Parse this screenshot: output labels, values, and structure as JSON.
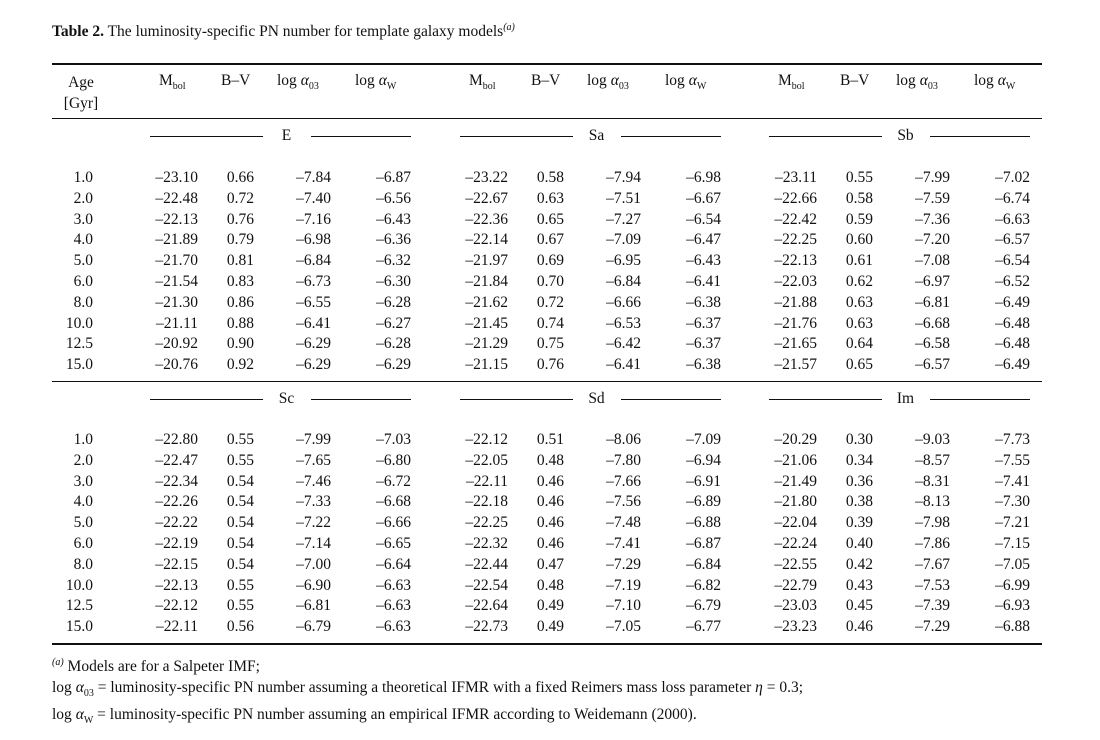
{
  "caption": {
    "label": "Table 2.",
    "text": "The luminosity-specific PN number for template galaxy models",
    "mark": "(a)"
  },
  "header": {
    "age": "Age",
    "age_unit": "[Gyr]",
    "mbol_main": "M",
    "mbol_sub": "bol",
    "bv": "B–V",
    "a03_log": "log ",
    "a03_sym": "α",
    "a03_sub": "03",
    "aw_log": "log ",
    "aw_sym": "α",
    "aw_sub": "W"
  },
  "ages": [
    "1.0",
    "2.0",
    "3.0",
    "4.0",
    "5.0",
    "6.0",
    "8.0",
    "10.0",
    "12.5",
    "15.0"
  ],
  "blocks": [
    {
      "groups": [
        {
          "name": "E",
          "rows": [
            [
              "–23.10",
              "0.66",
              "–7.84",
              "–6.87"
            ],
            [
              "–22.48",
              "0.72",
              "–7.40",
              "–6.56"
            ],
            [
              "–22.13",
              "0.76",
              "–7.16",
              "–6.43"
            ],
            [
              "–21.89",
              "0.79",
              "–6.98",
              "–6.36"
            ],
            [
              "–21.70",
              "0.81",
              "–6.84",
              "–6.32"
            ],
            [
              "–21.54",
              "0.83",
              "–6.73",
              "–6.30"
            ],
            [
              "–21.30",
              "0.86",
              "–6.55",
              "–6.28"
            ],
            [
              "–21.11",
              "0.88",
              "–6.41",
              "–6.27"
            ],
            [
              "–20.92",
              "0.90",
              "–6.29",
              "–6.28"
            ],
            [
              "–20.76",
              "0.92",
              "–6.29",
              "–6.29"
            ]
          ]
        },
        {
          "name": "Sa",
          "rows": [
            [
              "–23.22",
              "0.58",
              "–7.94",
              "–6.98"
            ],
            [
              "–22.67",
              "0.63",
              "–7.51",
              "–6.67"
            ],
            [
              "–22.36",
              "0.65",
              "–7.27",
              "–6.54"
            ],
            [
              "–22.14",
              "0.67",
              "–7.09",
              "–6.47"
            ],
            [
              "–21.97",
              "0.69",
              "–6.95",
              "–6.43"
            ],
            [
              "–21.84",
              "0.70",
              "–6.84",
              "–6.41"
            ],
            [
              "–21.62",
              "0.72",
              "–6.66",
              "–6.38"
            ],
            [
              "–21.45",
              "0.74",
              "–6.53",
              "–6.37"
            ],
            [
              "–21.29",
              "0.75",
              "–6.42",
              "–6.37"
            ],
            [
              "–21.15",
              "0.76",
              "–6.41",
              "–6.38"
            ]
          ]
        },
        {
          "name": "Sb",
          "rows": [
            [
              "–23.11",
              "0.55",
              "–7.99",
              "–7.02"
            ],
            [
              "–22.66",
              "0.58",
              "–7.59",
              "–6.74"
            ],
            [
              "–22.42",
              "0.59",
              "–7.36",
              "–6.63"
            ],
            [
              "–22.25",
              "0.60",
              "–7.20",
              "–6.57"
            ],
            [
              "–22.13",
              "0.61",
              "–7.08",
              "–6.54"
            ],
            [
              "–22.03",
              "0.62",
              "–6.97",
              "–6.52"
            ],
            [
              "–21.88",
              "0.63",
              "–6.81",
              "–6.49"
            ],
            [
              "–21.76",
              "0.63",
              "–6.68",
              "–6.48"
            ],
            [
              "–21.65",
              "0.64",
              "–6.58",
              "–6.48"
            ],
            [
              "–21.57",
              "0.65",
              "–6.57",
              "–6.49"
            ]
          ]
        }
      ]
    },
    {
      "groups": [
        {
          "name": "Sc",
          "rows": [
            [
              "–22.80",
              "0.55",
              "–7.99",
              "–7.03"
            ],
            [
              "–22.47",
              "0.55",
              "–7.65",
              "–6.80"
            ],
            [
              "–22.34",
              "0.54",
              "–7.46",
              "–6.72"
            ],
            [
              "–22.26",
              "0.54",
              "–7.33",
              "–6.68"
            ],
            [
              "–22.22",
              "0.54",
              "–7.22",
              "–6.66"
            ],
            [
              "–22.19",
              "0.54",
              "–7.14",
              "–6.65"
            ],
            [
              "–22.15",
              "0.54",
              "–7.00",
              "–6.64"
            ],
            [
              "–22.13",
              "0.55",
              "–6.90",
              "–6.63"
            ],
            [
              "–22.12",
              "0.55",
              "–6.81",
              "–6.63"
            ],
            [
              "–22.11",
              "0.56",
              "–6.79",
              "–6.63"
            ]
          ]
        },
        {
          "name": "Sd",
          "rows": [
            [
              "–22.12",
              "0.51",
              "–8.06",
              "–7.09"
            ],
            [
              "–22.05",
              "0.48",
              "–7.80",
              "–6.94"
            ],
            [
              "–22.11",
              "0.46",
              "–7.66",
              "–6.91"
            ],
            [
              "–22.18",
              "0.46",
              "–7.56",
              "–6.89"
            ],
            [
              "–22.25",
              "0.46",
              "–7.48",
              "–6.88"
            ],
            [
              "–22.32",
              "0.46",
              "–7.41",
              "–6.87"
            ],
            [
              "–22.44",
              "0.47",
              "–7.29",
              "–6.84"
            ],
            [
              "–22.54",
              "0.48",
              "–7.19",
              "–6.82"
            ],
            [
              "–22.64",
              "0.49",
              "–7.10",
              "–6.79"
            ],
            [
              "–22.73",
              "0.49",
              "–7.05",
              "–6.77"
            ]
          ]
        },
        {
          "name": "Im",
          "rows": [
            [
              "–20.29",
              "0.30",
              "–9.03",
              "–7.73"
            ],
            [
              "–21.06",
              "0.34",
              "–8.57",
              "–7.55"
            ],
            [
              "–21.49",
              "0.36",
              "–8.31",
              "–7.41"
            ],
            [
              "–21.80",
              "0.38",
              "–8.13",
              "–7.30"
            ],
            [
              "–22.04",
              "0.39",
              "–7.98",
              "–7.21"
            ],
            [
              "–22.24",
              "0.40",
              "–7.86",
              "–7.15"
            ],
            [
              "–22.55",
              "0.42",
              "–7.67",
              "–7.05"
            ],
            [
              "–22.79",
              "0.43",
              "–7.53",
              "–6.99"
            ],
            [
              "–23.03",
              "0.45",
              "–7.39",
              "–6.93"
            ],
            [
              "–23.23",
              "0.46",
              "–7.29",
              "–6.88"
            ]
          ]
        }
      ]
    }
  ],
  "footnotes": {
    "mark": "(a)",
    "line1": " Models are for a Salpeter IMF;",
    "line2_log": "log ",
    "line2_sym": "α",
    "line2_sub": "03",
    "line2_text": " = luminosity-specific PN number assuming a theoretical IFMR with a fixed Reimers mass loss parameter ",
    "line2_eta": "η",
    "line2_end": " = 0.3;",
    "line3_log": "log ",
    "line3_sym": "α",
    "line3_sub": "W",
    "line3_text": " = luminosity-specific PN number assuming an empirical IFMR according to Weidemann (2000)."
  }
}
